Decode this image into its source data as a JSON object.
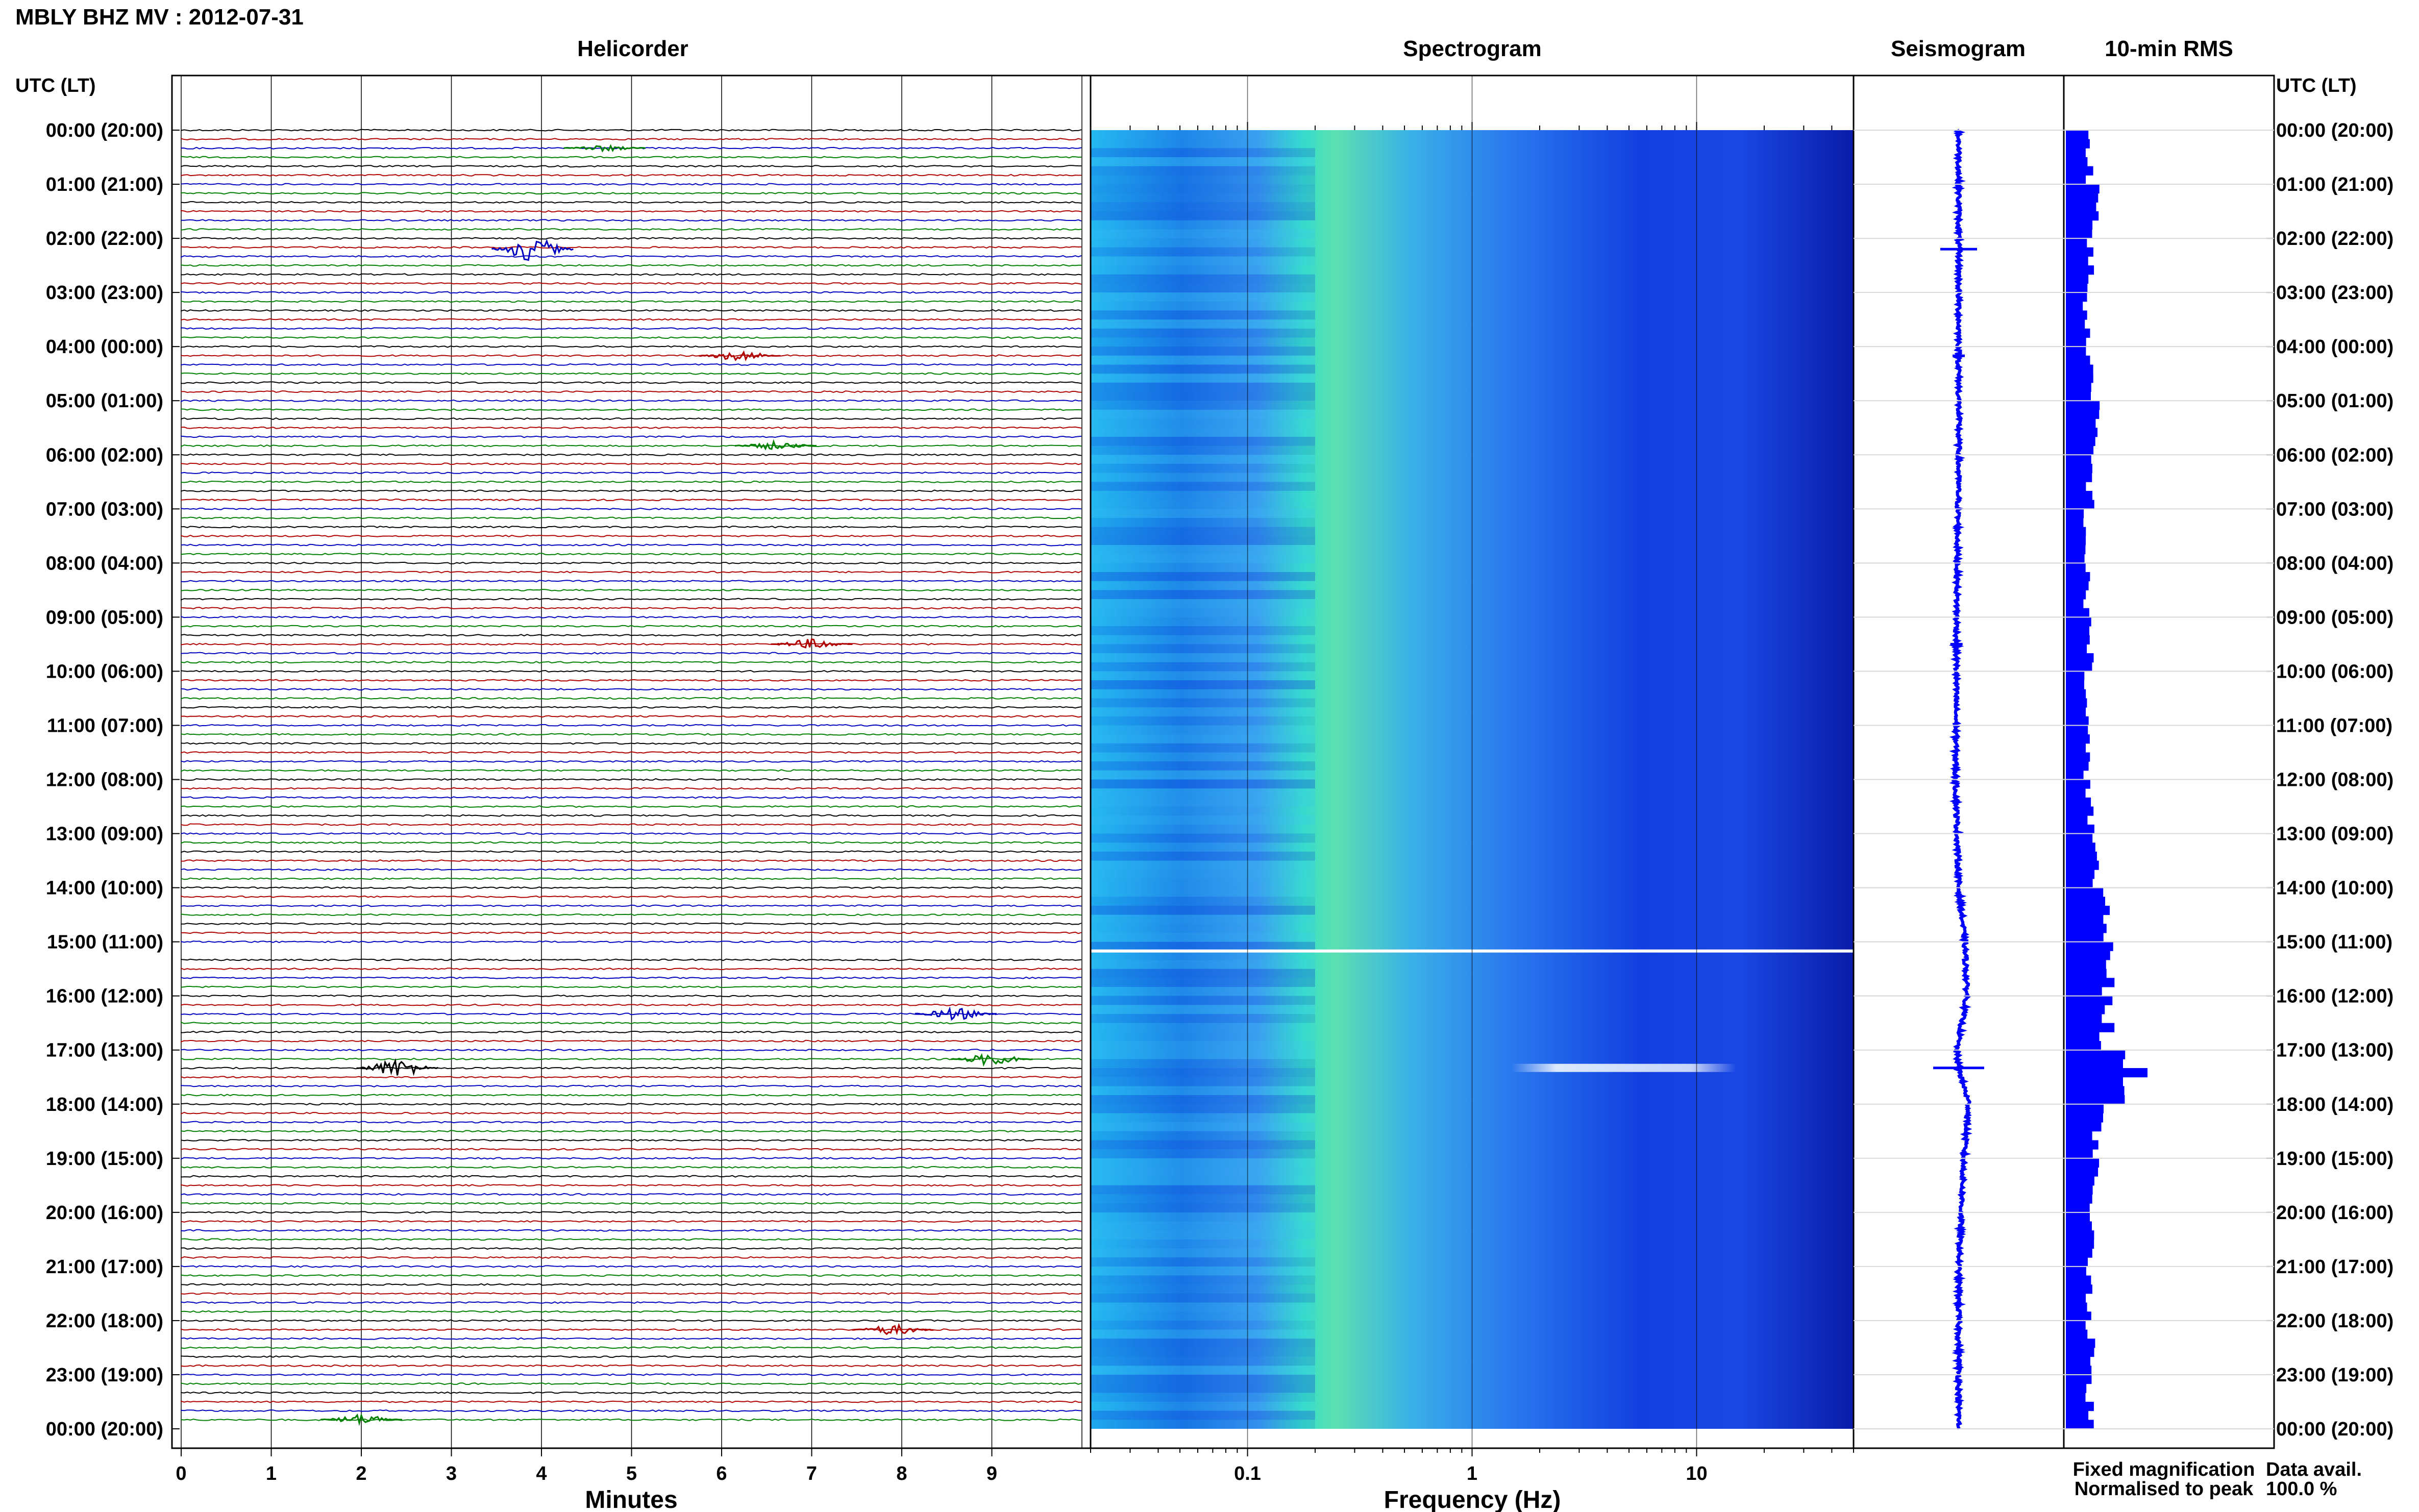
{
  "page_title": "MBLY BHZ MV : 2012-07-31",
  "panels": {
    "helicorder": "Helicorder",
    "spectrogram": "Spectrogram",
    "seismogram": "Seismogram",
    "rms": "10-min RMS"
  },
  "left_axis_header": "UTC (LT)",
  "right_axis_header": "UTC (LT)",
  "x_labels": {
    "helicorder": "Minutes",
    "spectrogram": "Frequency (Hz)"
  },
  "legend": {
    "fixed": "Fixed magnification",
    "normalised": "Normalised to peak",
    "fixed_color": "#0000ff",
    "normalised_color": "#ff0000"
  },
  "data_avail": {
    "label": "Data avail.",
    "value": "100.0 %"
  },
  "chart_data": {
    "type": "heatmap",
    "time_ticks": [
      "00:00 (20:00)",
      "01:00 (21:00)",
      "02:00 (22:00)",
      "03:00 (23:00)",
      "04:00 (00:00)",
      "05:00 (01:00)",
      "06:00 (02:00)",
      "07:00 (03:00)",
      "08:00 (04:00)",
      "09:00 (05:00)",
      "10:00 (06:00)",
      "11:00 (07:00)",
      "12:00 (08:00)",
      "13:00 (09:00)",
      "14:00 (10:00)",
      "15:00 (11:00)",
      "16:00 (12:00)",
      "17:00 (13:00)",
      "18:00 (14:00)",
      "19:00 (15:00)",
      "20:00 (16:00)",
      "21:00 (17:00)",
      "22:00 (18:00)",
      "23:00 (19:00)",
      "00:00 (20:00)"
    ],
    "helicorder": {
      "x_ticks": [
        "0",
        "1",
        "2",
        "3",
        "4",
        "5",
        "6",
        "7",
        "8",
        "9"
      ],
      "x_range_minutes": [
        0,
        10
      ],
      "trace_colors": [
        "#000000",
        "#b00000",
        "#0000c0",
        "#008000"
      ],
      "rows": 144,
      "events": [
        {
          "hour": 0.33,
          "minute": 4.7,
          "amp": 3,
          "color": "#008000"
        },
        {
          "hour": 2.2,
          "minute": 3.9,
          "amp": 12,
          "color": "#0000c0"
        },
        {
          "hour": 4.17,
          "minute": 6.2,
          "amp": 5,
          "color": "#b00000"
        },
        {
          "hour": 5.83,
          "minute": 6.6,
          "amp": 4,
          "color": "#008000"
        },
        {
          "hour": 9.5,
          "minute": 7.0,
          "amp": 5,
          "color": "#b00000"
        },
        {
          "hour": 16.33,
          "minute": 8.6,
          "amp": 6,
          "color": "#0000c0"
        },
        {
          "hour": 17.33,
          "minute": 2.4,
          "amp": 9,
          "color": "#000000"
        },
        {
          "hour": 17.17,
          "minute": 9.0,
          "amp": 6,
          "color": "#008000"
        },
        {
          "hour": 22.17,
          "minute": 7.9,
          "amp": 5,
          "color": "#b00000"
        },
        {
          "hour": 23.83,
          "minute": 2.0,
          "amp": 5,
          "color": "#008000"
        }
      ],
      "gap_hour": 15.17
    },
    "spectrogram": {
      "x_scale": "log",
      "x_ticks": [
        "0.1",
        "1",
        "10"
      ],
      "x_range_hz": [
        0.02,
        50
      ],
      "event_band": {
        "hour": 17.33,
        "f_min": 1.5,
        "f_max": 15
      }
    },
    "seismogram": {
      "drift_points": [
        [
          0,
          0
        ],
        [
          6,
          0
        ],
        [
          9,
          -2
        ],
        [
          12,
          -3
        ],
        [
          14,
          0
        ],
        [
          15,
          6
        ],
        [
          16,
          8
        ],
        [
          17,
          -2
        ],
        [
          17.33,
          0
        ],
        [
          18,
          10
        ],
        [
          19,
          5
        ],
        [
          21,
          0
        ],
        [
          24,
          0
        ]
      ],
      "spikes": [
        {
          "hour": 2.2,
          "amp": 18
        },
        {
          "hour": 4.17,
          "amp": 6
        },
        {
          "hour": 9.5,
          "amp": 6
        },
        {
          "hour": 17.33,
          "amp": 25
        }
      ]
    },
    "rms": {
      "rms_hourly": [
        0.3,
        0.35,
        0.3,
        0.25,
        0.3,
        0.35,
        0.3,
        0.25,
        0.25,
        0.3,
        0.25,
        0.25,
        0.3,
        0.35,
        0.45,
        0.55,
        0.5,
        0.7,
        0.4,
        0.35,
        0.3,
        0.3,
        0.3,
        0.3
      ],
      "rms_peak": {
        "hour": 17.33,
        "value": 1.0
      }
    }
  }
}
